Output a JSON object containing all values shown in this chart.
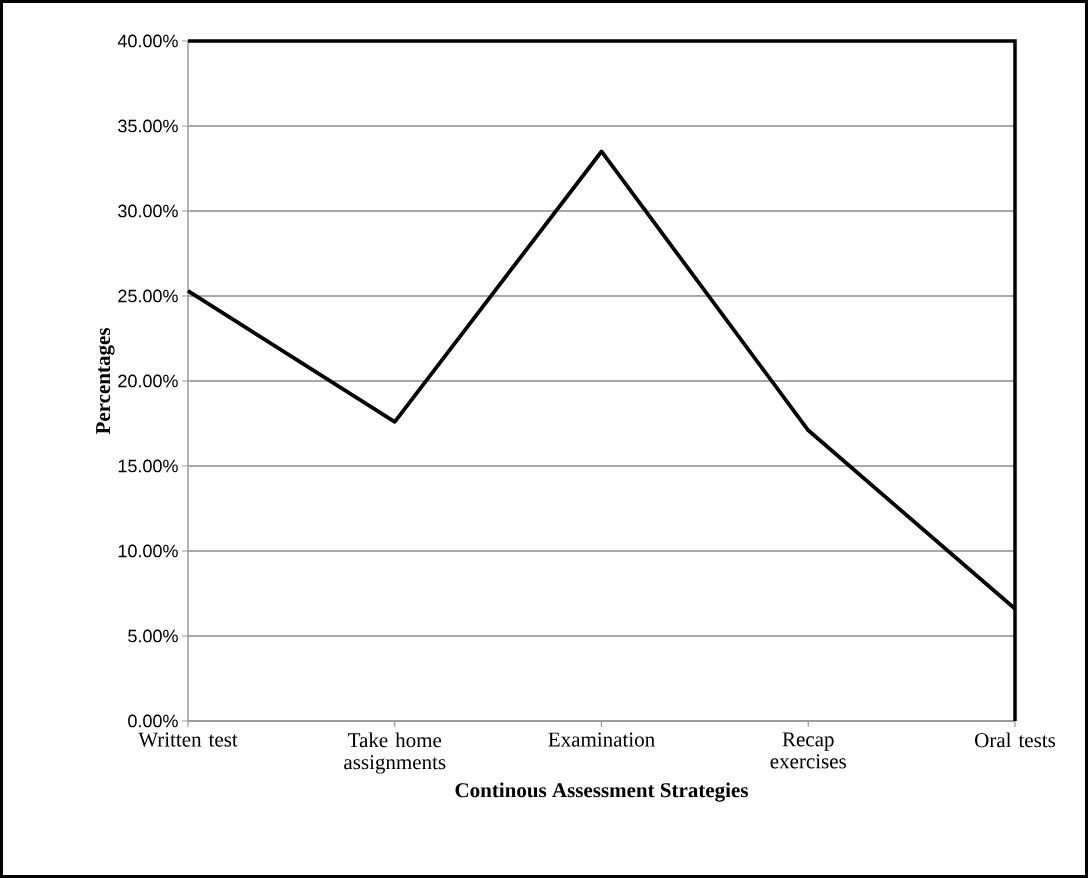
{
  "chart_data": {
    "type": "line",
    "categories": [
      "Written test",
      "Take home assignments",
      "Examination",
      "Recap exercises",
      "Oral tests"
    ],
    "values": [
      25.3,
      17.6,
      33.5,
      17.1,
      6.6
    ],
    "color": "#000000",
    "line_style": "solid",
    "xlabel": "Continous Assessment Strategies",
    "ylabel": "Percentages",
    "ylim": [
      0,
      40
    ],
    "yticks": [
      {
        "value": 0,
        "label": "0.00%"
      },
      {
        "value": 5,
        "label": "5.00%"
      },
      {
        "value": 10,
        "label": "10.00%"
      },
      {
        "value": 15,
        "label": "15.00%"
      },
      {
        "value": 20,
        "label": "20.00%"
      },
      {
        "value": 25,
        "label": "25.00%"
      },
      {
        "value": 30,
        "label": "30.00%"
      },
      {
        "value": 35,
        "label": "35.00%"
      },
      {
        "value": 40,
        "label": "40.00%"
      }
    ],
    "grid": "y"
  }
}
